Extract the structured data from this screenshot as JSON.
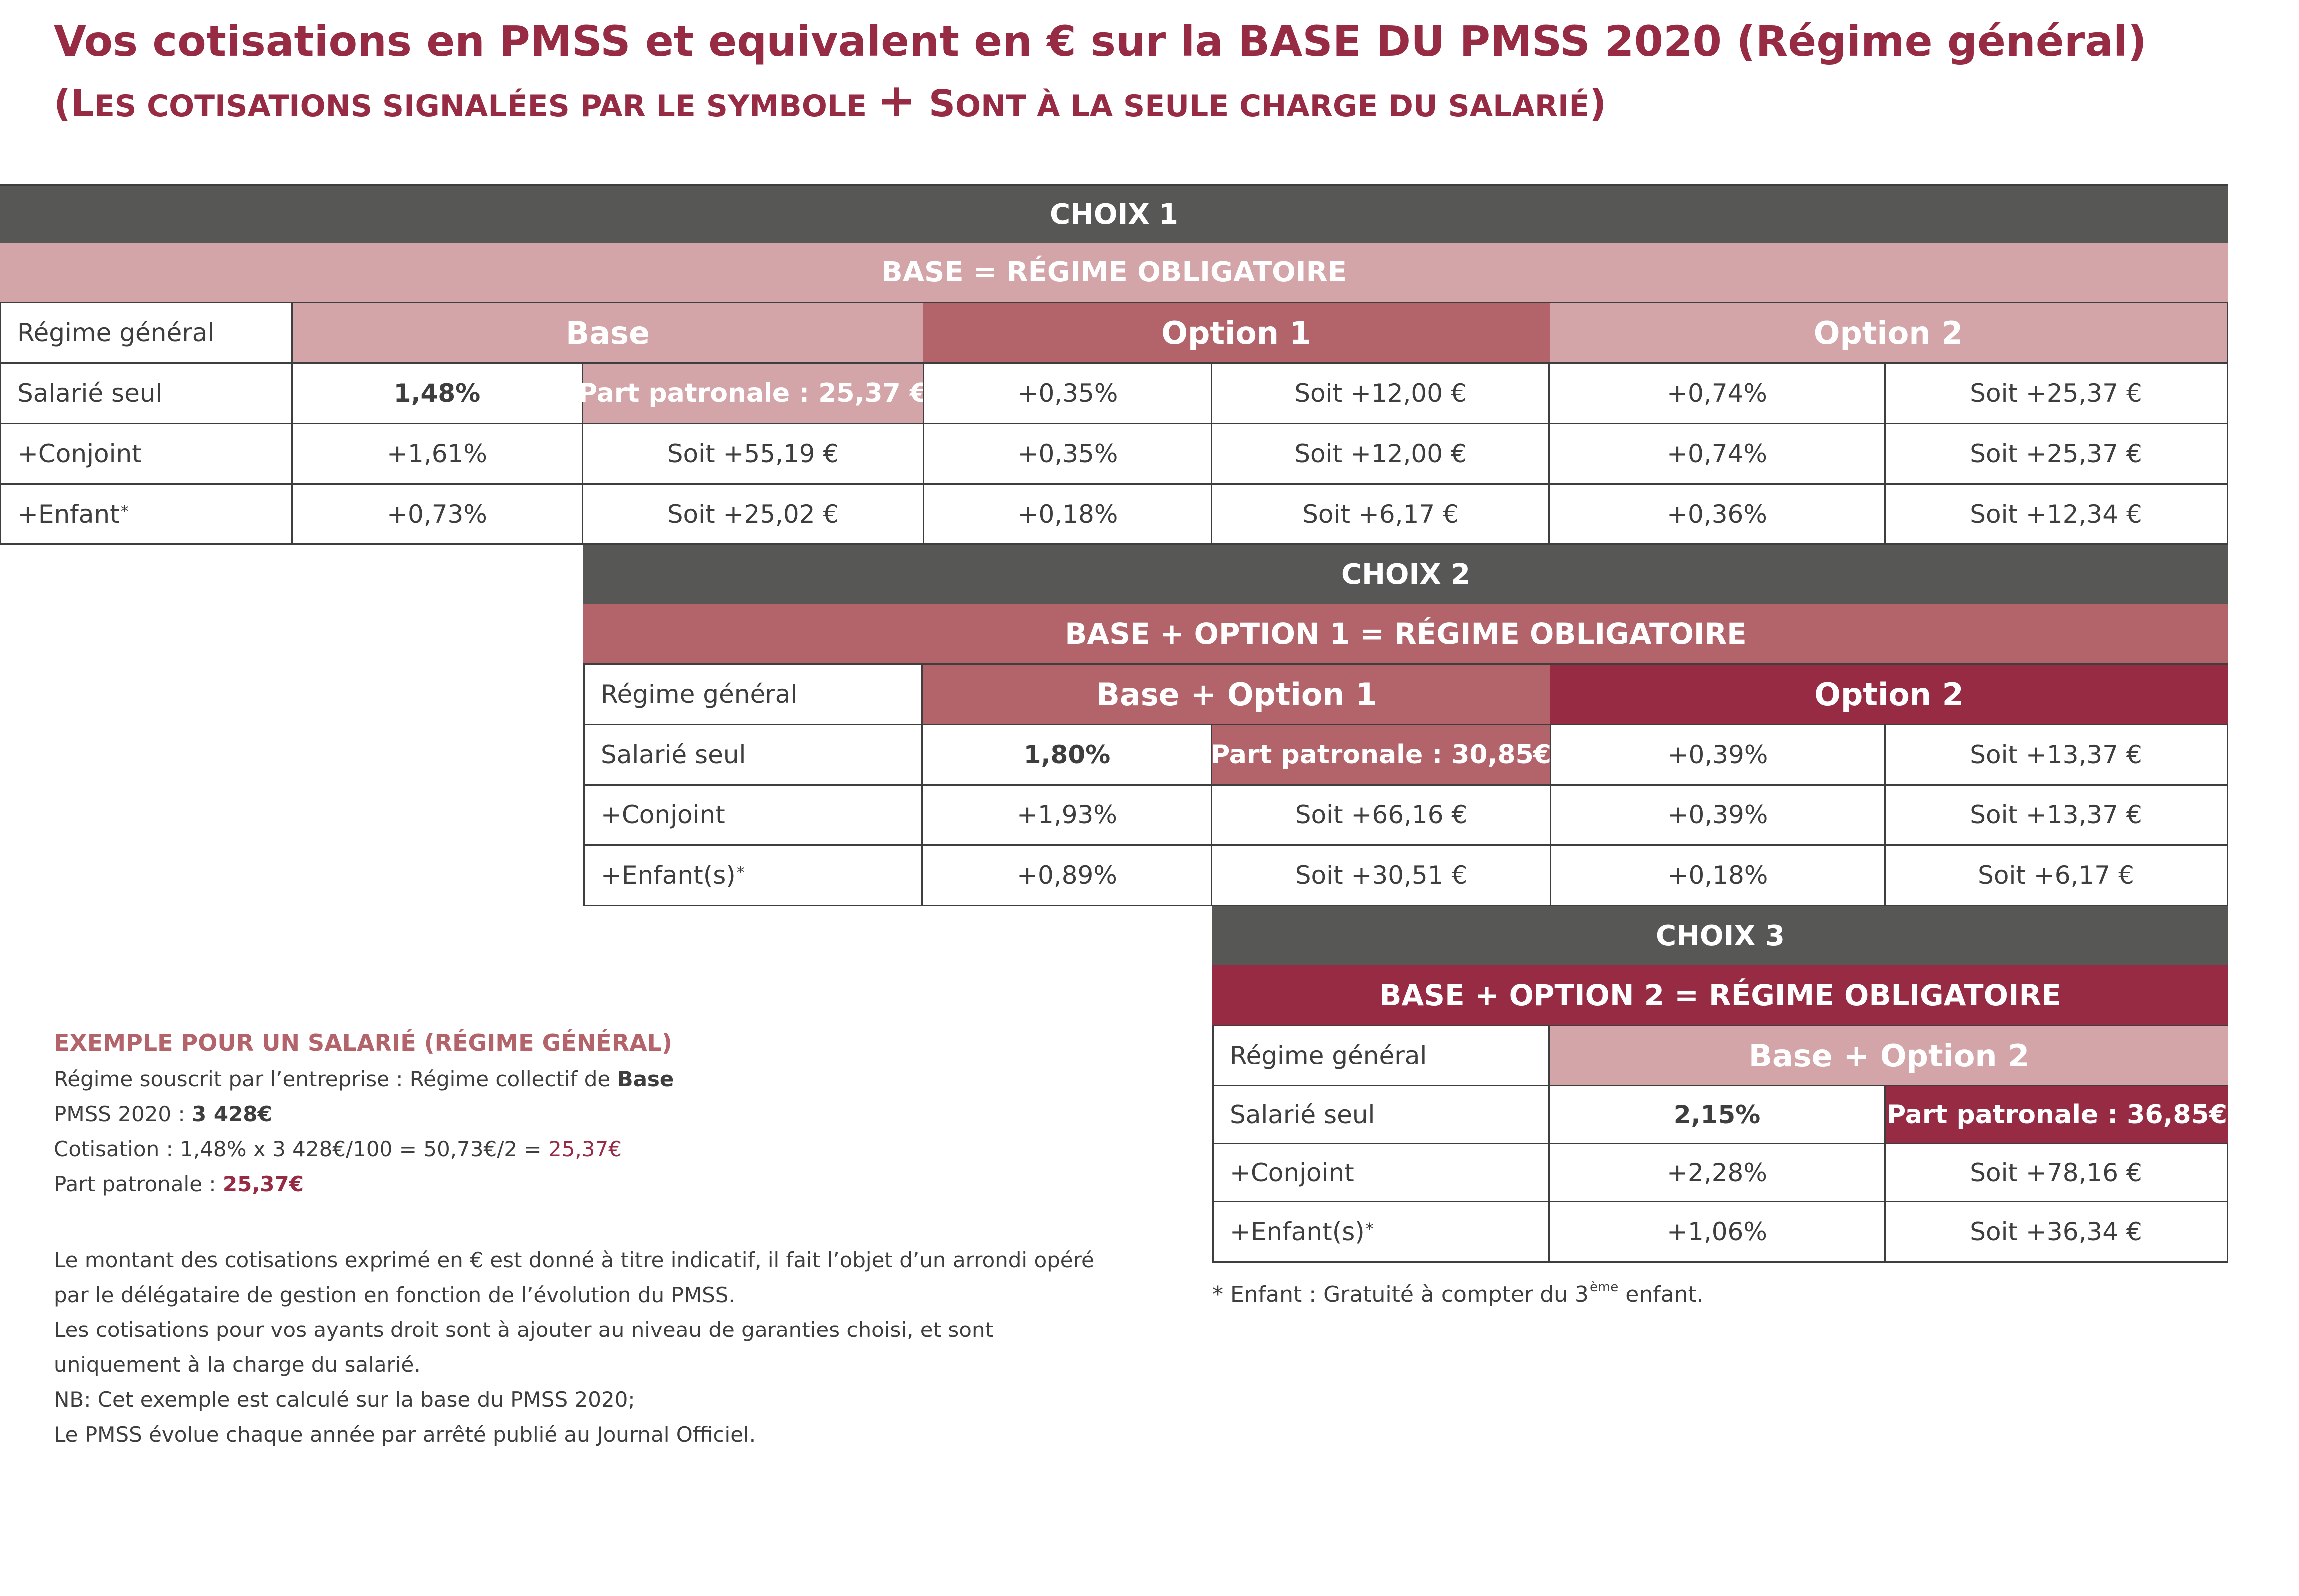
{
  "title": "Vos cotisations en PMSS et equivalent en € sur la BASE DU PMSS 2020 (Régime général)",
  "subtitle": {
    "open": "(",
    "part1_big": "L",
    "part1": "ES COTISATIONS SIGNALÉES PAR LE SYMBOLE ",
    "plus": "+",
    "part2_big": " S",
    "part2": "ONT À LA SEULE CHARGE DU SALARIÉ",
    "close": ")"
  },
  "choix1": {
    "label": "CHOIX 1",
    "regime": "BASE = RÉGIME OBLIGATOIRE",
    "regime_label": "Régime général",
    "headers": [
      "Base",
      "Option 1",
      "Option 2"
    ],
    "rows": [
      {
        "label": "Salarié seul",
        "base_rate": "1,48%",
        "base_amount": "Part patronale : 25,37 €",
        "opt1_rate": "+0,35%",
        "opt1_amount": "Soit +12,00 €",
        "opt2_rate": "+0,74%",
        "opt2_amount": "Soit +25,37 €"
      },
      {
        "label": "+Conjoint",
        "base_rate": "+1,61%",
        "base_amount": "Soit +55,19 €",
        "opt1_rate": "+0,35%",
        "opt1_amount": "Soit +12,00 €",
        "opt2_rate": "+0,74%",
        "opt2_amount": "Soit +25,37 €"
      },
      {
        "label": "+Enfant",
        "sup": "*",
        "base_rate": "+0,73%",
        "base_amount": "Soit +25,02 €",
        "opt1_rate": "+0,18%",
        "opt1_amount": "Soit +6,17 €",
        "opt2_rate": "+0,36%",
        "opt2_amount": "Soit +12,34 €"
      }
    ]
  },
  "choix2": {
    "label": "CHOIX 2",
    "regime": "BASE + OPTION 1 = RÉGIME OBLIGATOIRE",
    "regime_label": "Régime général",
    "headers": [
      "Base + Option 1",
      "Option 2"
    ],
    "rows": [
      {
        "label": "Salarié seul",
        "base_rate": "1,80%",
        "base_amount": "Part patronale : 30,85€",
        "opt2_rate": "+0,39%",
        "opt2_amount": "Soit +13,37 €"
      },
      {
        "label": "+Conjoint",
        "base_rate": "+1,93%",
        "base_amount": "Soit +66,16 €",
        "opt2_rate": "+0,39%",
        "opt2_amount": "Soit +13,37 €"
      },
      {
        "label": "+Enfant(s)",
        "sup": "*",
        "base_rate": "+0,89%",
        "base_amount": "Soit +30,51 €",
        "opt2_rate": "+0,18%",
        "opt2_amount": "Soit +6,17 €"
      }
    ]
  },
  "choix3": {
    "label": "CHOIX 3",
    "regime": "BASE + OPTION 2 = RÉGIME OBLIGATOIRE",
    "regime_label": "Régime général",
    "headers": [
      "Base + Option 2"
    ],
    "rows": [
      {
        "label": "Salarié seul",
        "base_rate": "2,15%",
        "base_amount": "Part patronale : 36,85€"
      },
      {
        "label": "+Conjoint",
        "base_rate": "+2,28%",
        "base_amount": "Soit +78,16 €"
      },
      {
        "label": "+Enfant(s)",
        "sup": "*",
        "base_rate": "+1,06%",
        "base_amount": "Soit +36,34 €"
      }
    ]
  },
  "footnote": {
    "text": "* Enfant : Gratuité à compter du 3",
    "sup": "ème",
    "tail": " enfant."
  },
  "example": {
    "title": "EXEMPLE POUR UN SALARIÉ (RÉGIME GÉNÉRAL)",
    "line1_text": "Régime souscrit par l’entreprise : Régime collectif de ",
    "line1_bold": "Base",
    "line2_text": "PMSS 2020 : ",
    "line2_bold": "3 428€",
    "line3_text": "Cotisation : 1,48% x 3 428€/100 = 50,73€/2 = ",
    "line3_red": "25,37€",
    "line4_text": "Part patronale : ",
    "line4_bold": "25,37€"
  },
  "notes": [
    "Le montant des cotisations exprimé en € est donné à titre indicatif, il fait l’objet d’un arrondi opéré par le délégataire de gestion en fonction de l’évolution du PMSS.",
    "Les cotisations pour vos ayants droit sont à ajouter au niveau de garanties choisi, et sont uniquement à la charge du salarié.",
    "NB: Cet exemple est calculé sur la base du PMSS 2020;",
    "Le PMSS évolue chaque année par arrêté publié au Journal Officiel."
  ]
}
